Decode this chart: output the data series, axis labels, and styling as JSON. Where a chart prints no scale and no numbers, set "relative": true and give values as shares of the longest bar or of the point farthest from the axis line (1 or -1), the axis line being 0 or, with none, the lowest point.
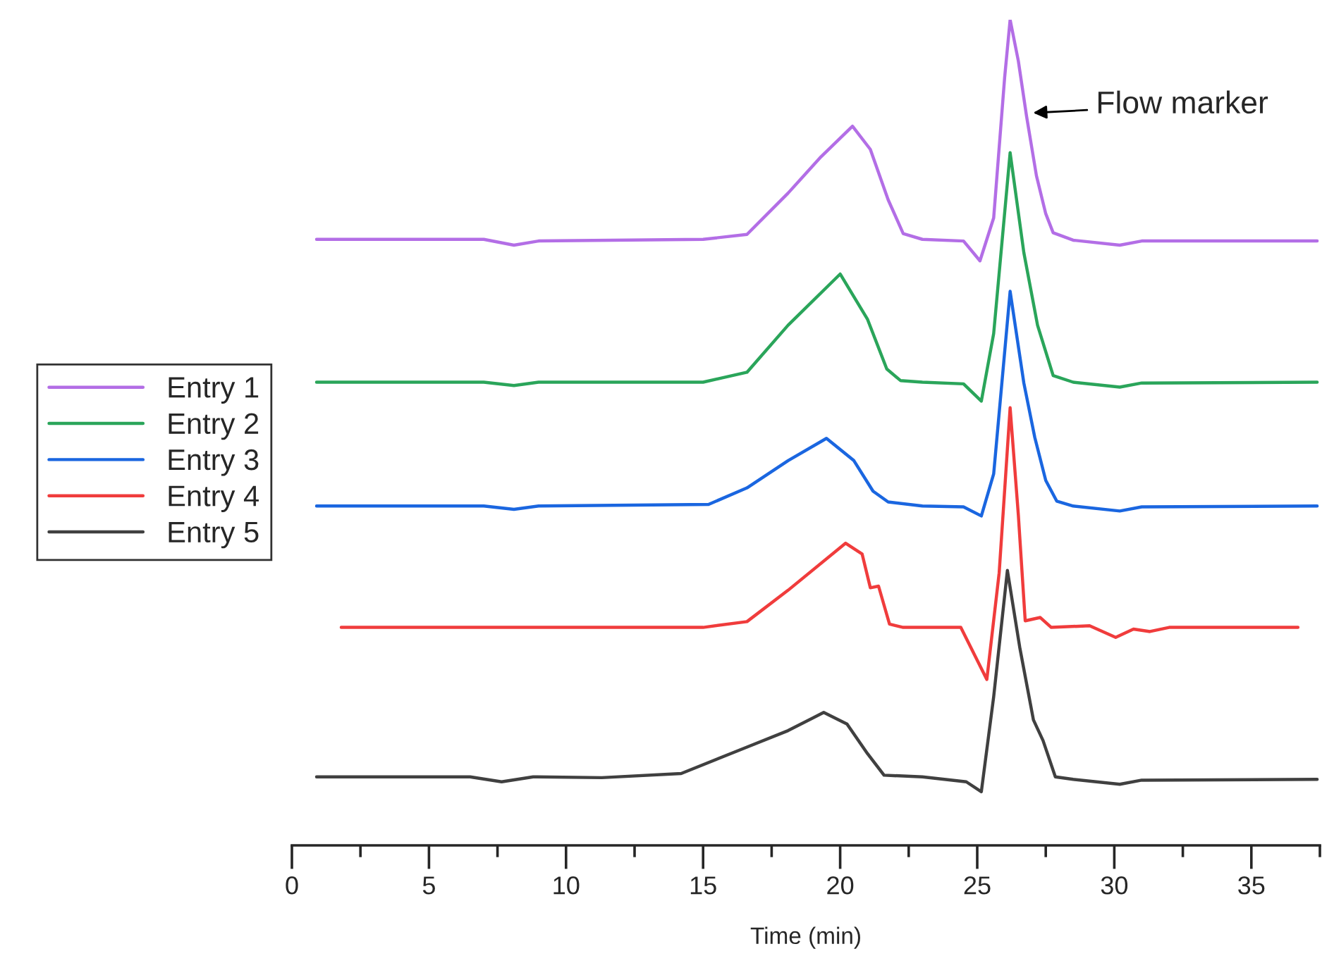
{
  "chart_data": {
    "type": "line",
    "relative": true,
    "xlabel": "Time (min)",
    "xlim": [
      0,
      37.5
    ],
    "xticks": [
      0,
      {
        "value": 2.5,
        "label": null
      },
      5,
      {
        "value": 7.5,
        "label": null
      },
      10,
      {
        "value": 12.5,
        "label": null
      },
      15,
      {
        "value": 17.5,
        "label": null
      },
      20,
      {
        "value": 22.5,
        "label": null
      },
      25,
      {
        "value": 27.5,
        "label": null
      },
      30,
      {
        "value": 32.5,
        "label": null
      },
      35,
      {
        "value": 37.5,
        "label": null
      }
    ],
    "legend": "left",
    "grid": false,
    "marker": "none",
    "line_style": "solid",
    "annotations": [
      {
        "text": "Flow marker",
        "x": 26.9,
        "y": 0.887
      }
    ],
    "series": [
      {
        "name": "Entry 1",
        "color": "#b36ee6",
        "x": [
          0.9,
          7,
          8.1,
          9,
          15,
          16.6,
          18.1,
          19.3,
          20.45,
          21.1,
          21.75,
          22.3,
          23,
          24.5,
          25.1,
          25.6,
          26.0,
          26.2,
          26.5,
          26.8,
          27.16,
          27.5,
          27.77,
          28.5,
          30.2,
          31,
          37.4
        ],
        "values": [
          0.734,
          0.734,
          0.727,
          0.732,
          0.734,
          0.74,
          0.79,
          0.834,
          0.871,
          0.843,
          0.782,
          0.741,
          0.734,
          0.732,
          0.708,
          0.76,
          0.93,
          1.0,
          0.95,
          0.883,
          0.811,
          0.765,
          0.742,
          0.733,
          0.727,
          0.732,
          0.732
        ]
      },
      {
        "name": "Entry 2",
        "color": "#2aa55a",
        "x": [
          0.9,
          7,
          8.1,
          9,
          15,
          16.6,
          18.1,
          20.0,
          21.0,
          21.7,
          22.2,
          23,
          24.5,
          25.15,
          25.6,
          26.2,
          26.7,
          27.2,
          27.77,
          28.5,
          30.2,
          31,
          37.4
        ],
        "values": [
          0.561,
          0.561,
          0.557,
          0.561,
          0.561,
          0.573,
          0.63,
          0.692,
          0.637,
          0.577,
          0.563,
          0.561,
          0.559,
          0.538,
          0.62,
          0.839,
          0.718,
          0.63,
          0.569,
          0.561,
          0.555,
          0.56,
          0.561
        ]
      },
      {
        "name": "Entry 3",
        "color": "#1a66e0",
        "x": [
          0.9,
          7,
          8.1,
          9,
          15.2,
          16.6,
          18.1,
          19.5,
          20.5,
          21.2,
          21.75,
          23,
          24.5,
          25.15,
          25.6,
          26.2,
          26.7,
          27.1,
          27.5,
          27.9,
          28.5,
          30.2,
          31,
          37.4
        ],
        "values": [
          0.411,
          0.411,
          0.407,
          0.411,
          0.413,
          0.433,
          0.466,
          0.493,
          0.466,
          0.429,
          0.416,
          0.411,
          0.41,
          0.399,
          0.45,
          0.671,
          0.56,
          0.494,
          0.442,
          0.417,
          0.411,
          0.405,
          0.41,
          0.411
        ]
      },
      {
        "name": "Entry 4",
        "color": "#f03c3c",
        "x": [
          1.8,
          15,
          16.6,
          18.1,
          20.2,
          20.8,
          21.1,
          21.4,
          21.8,
          22.3,
          24.4,
          25.35,
          25.8,
          26.2,
          26.5,
          26.75,
          27.3,
          27.7,
          29.1,
          30.05,
          30.7,
          31.3,
          32,
          36.7
        ],
        "values": [
          0.264,
          0.264,
          0.271,
          0.309,
          0.366,
          0.353,
          0.312,
          0.314,
          0.268,
          0.264,
          0.264,
          0.201,
          0.33,
          0.53,
          0.4,
          0.272,
          0.276,
          0.264,
          0.266,
          0.252,
          0.262,
          0.259,
          0.264,
          0.264
        ]
      },
      {
        "name": "Entry 5",
        "color": "#404040",
        "x": [
          0.9,
          6.5,
          7.65,
          8.8,
          11.3,
          14.2,
          16.6,
          18.1,
          19.4,
          20.25,
          21.0,
          21.6,
          23,
          24.6,
          25.15,
          25.6,
          26.1,
          26.55,
          27.05,
          27.4,
          27.85,
          28.5,
          30.2,
          31,
          37.4
        ],
        "values": [
          0.083,
          0.083,
          0.077,
          0.083,
          0.082,
          0.087,
          0.119,
          0.139,
          0.161,
          0.147,
          0.111,
          0.085,
          0.083,
          0.077,
          0.065,
          0.18,
          0.333,
          0.24,
          0.152,
          0.127,
          0.083,
          0.08,
          0.074,
          0.079,
          0.08
        ]
      }
    ]
  }
}
